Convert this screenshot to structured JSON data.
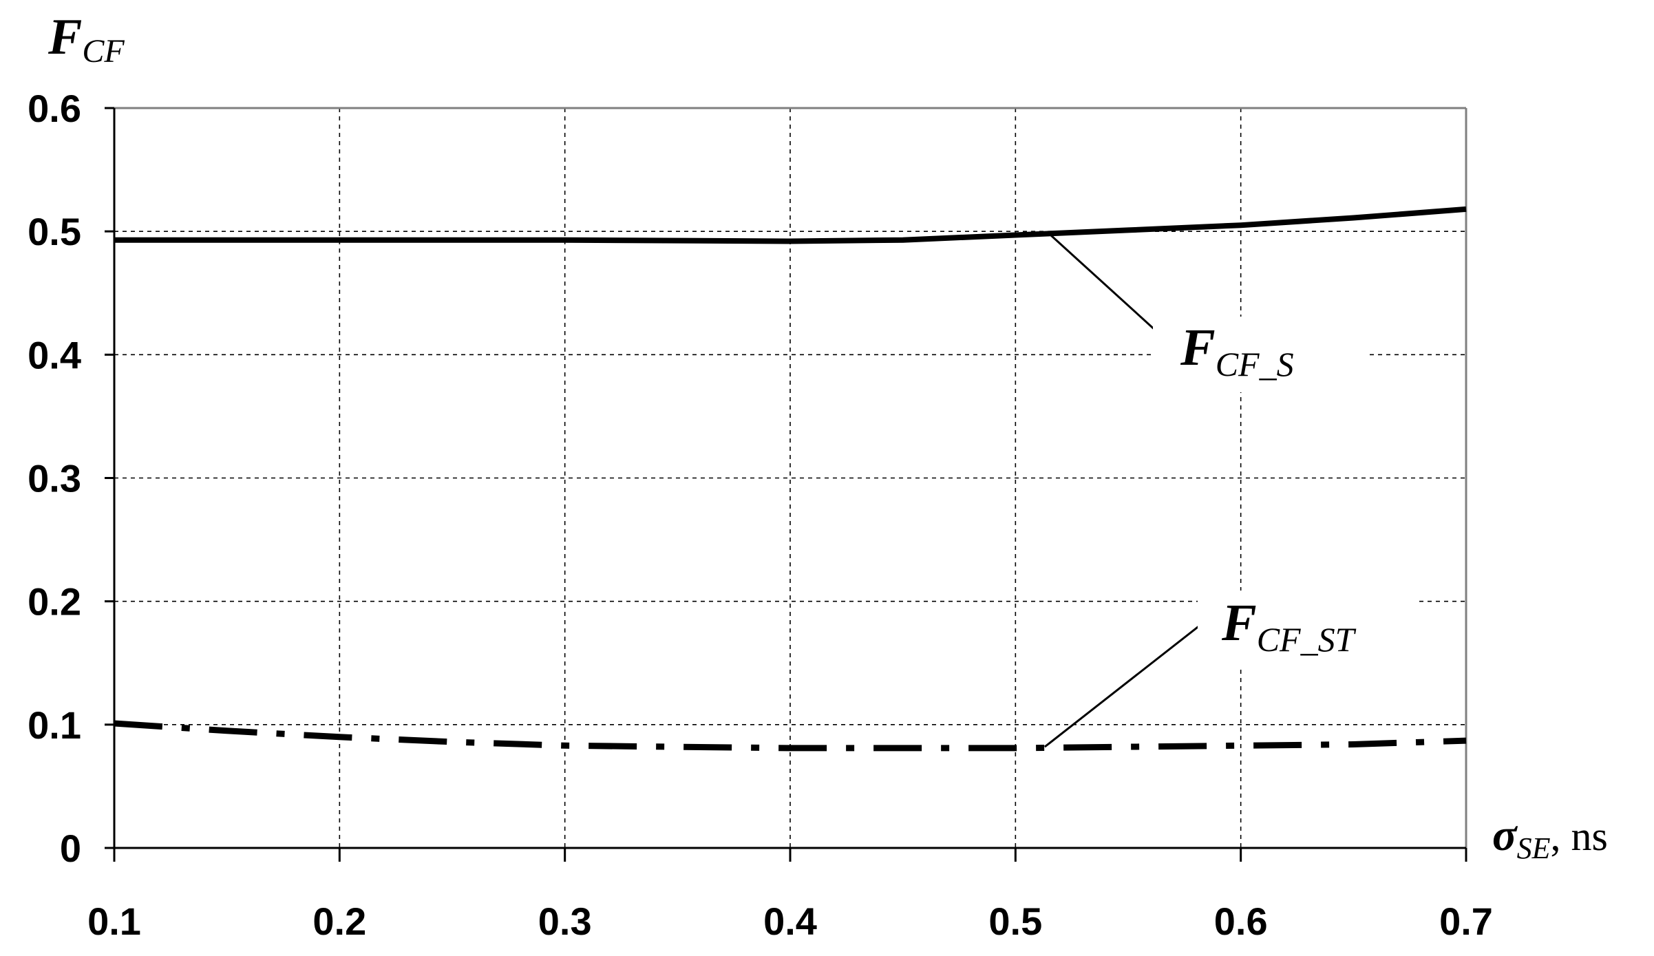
{
  "chart_data": {
    "type": "line",
    "y_axis_title": {
      "main": "F",
      "sub": "CF"
    },
    "x_axis_title": {
      "main": "σ",
      "sub": "SE",
      "unit": ", ns"
    },
    "xlim": [
      0.1,
      0.7
    ],
    "ylim": [
      0,
      0.6
    ],
    "x_ticks": [
      "0.1",
      "0.2",
      "0.3",
      "0.4",
      "0.5",
      "0.6",
      "0.7"
    ],
    "y_ticks": [
      "0",
      "0.1",
      "0.2",
      "0.3",
      "0.4",
      "0.5",
      "0.6"
    ],
    "grid": true,
    "series": [
      {
        "label_main": "F",
        "label_sub": "CF_S",
        "style": "solid",
        "x": [
          0.1,
          0.2,
          0.3,
          0.4,
          0.45,
          0.5,
          0.55,
          0.6,
          0.65,
          0.7
        ],
        "y": [
          0.493,
          0.493,
          0.493,
          0.492,
          0.493,
          0.497,
          0.501,
          0.505,
          0.511,
          0.518
        ],
        "callout": {
          "anchor_x": 0.515,
          "anchor_y": 0.498,
          "label_x": 0.565,
          "label_y": 0.415
        }
      },
      {
        "label_main": "F",
        "label_sub": "CF_ST",
        "style": "dash-dot",
        "x": [
          0.1,
          0.15,
          0.2,
          0.25,
          0.3,
          0.35,
          0.4,
          0.45,
          0.5,
          0.55,
          0.6,
          0.65,
          0.7
        ],
        "y": [
          0.101,
          0.095,
          0.09,
          0.086,
          0.083,
          0.082,
          0.081,
          0.081,
          0.081,
          0.082,
          0.083,
          0.084,
          0.087
        ],
        "callout": {
          "anchor_x": 0.513,
          "anchor_y": 0.082,
          "label_x": 0.585,
          "label_y": 0.185
        }
      }
    ]
  }
}
